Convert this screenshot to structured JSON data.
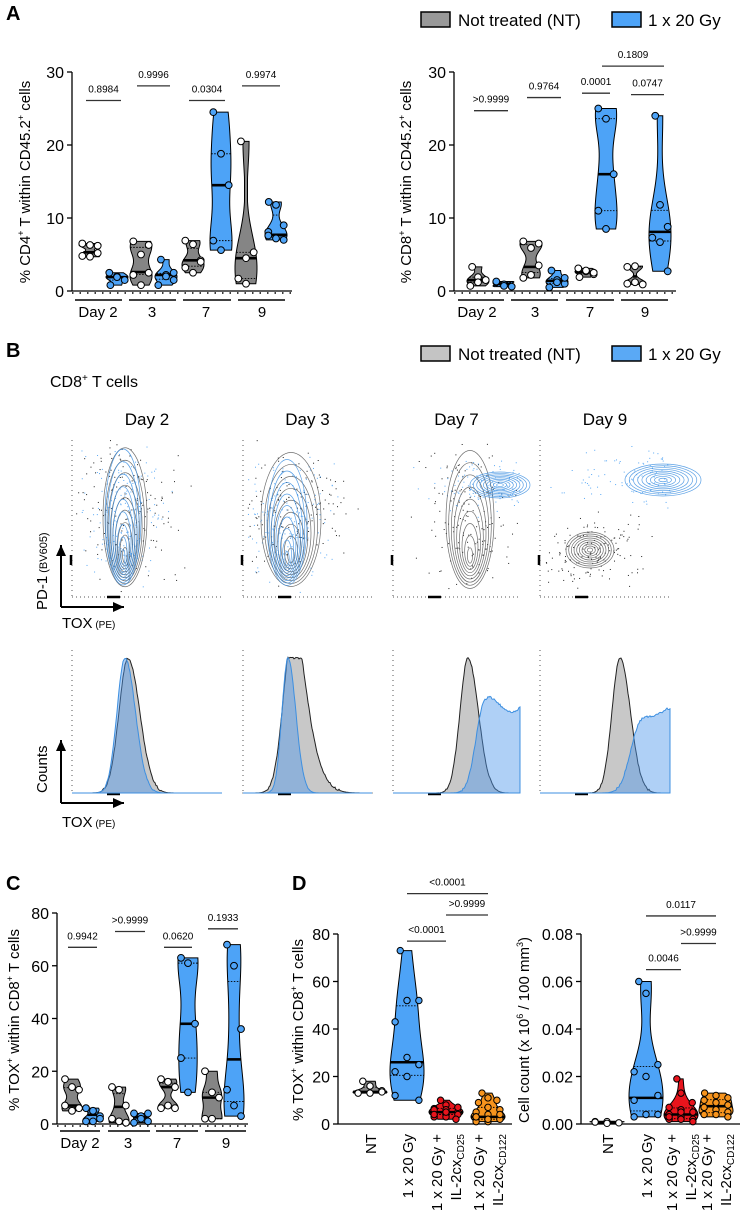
{
  "panel_letters": {
    "A": "A",
    "B": "B",
    "C": "C",
    "D": "D"
  },
  "legend": {
    "nt": "Not treated (NT)",
    "ir": "1 x 20 Gy"
  },
  "colors": {
    "nt": "#808080",
    "ir": "#4da3f7",
    "cd25": "#e8141c",
    "cd122": "#f7941d",
    "nt_flow": "#555555",
    "ir_flow": "#3d8fe0"
  },
  "panel_b": {
    "title_parts": [
      "CD8",
      "+",
      " T cells"
    ],
    "days": [
      "Day 2",
      "Day 3",
      "Day 7",
      "Day 9"
    ],
    "contour_ylabel": {
      "main": "PD-1",
      "sub": " (BV605)"
    },
    "contour_xlabel": {
      "main": "TOX",
      "sub": " (PE)"
    },
    "hist_ylabel": "Counts",
    "hist_xlabel": {
      "main": "TOX",
      "sub": " (PE)"
    }
  },
  "chart_data": [
    {
      "id": "A_cd4",
      "type": "violin",
      "ylabel_parts": [
        "% CD4",
        "+",
        " T within CD45.2",
        "+",
        " cells"
      ],
      "ylim": [
        0,
        30
      ],
      "yticks": [
        "0",
        "10",
        "20",
        "30"
      ],
      "ytick_values": [
        0,
        10,
        20,
        30
      ],
      "x_group_labels": [
        "Day 2",
        "3",
        "7",
        "9"
      ],
      "groups": [
        {
          "day": "Day 2",
          "series": "nt",
          "points": [
            6.5,
            6.3,
            5.2,
            4.8,
            4.7,
            6.2
          ],
          "median": 5.3
        },
        {
          "day": "Day 2",
          "series": "ir",
          "points": [
            2.5,
            2.0,
            1.5,
            0.8,
            1.9
          ],
          "median": 1.9
        },
        {
          "day": "3",
          "series": "nt",
          "points": [
            6.8,
            5.0,
            2.5,
            2.2,
            0.8,
            6.3
          ],
          "median": 2.6
        },
        {
          "day": "3",
          "series": "ir",
          "points": [
            4.3,
            2.2,
            1.5,
            0.8,
            2.0,
            2.5
          ],
          "median": 2.2
        },
        {
          "day": "7",
          "series": "nt",
          "points": [
            6.9,
            6.4,
            4.2,
            3.2,
            2.5,
            4.0
          ],
          "median": 4.2
        },
        {
          "day": "7",
          "series": "ir",
          "points": [
            24.5,
            18.8,
            14.5,
            6.9,
            5.6
          ],
          "median": 14.5
        },
        {
          "day": "9",
          "series": "nt",
          "points": [
            20.5,
            4.5,
            5.3,
            1.7,
            1.0
          ],
          "median": 4.5
        },
        {
          "day": "9",
          "series": "ir",
          "points": [
            12.2,
            11.8,
            9.0,
            8.1,
            7.2,
            7.0,
            7.6
          ],
          "median": 7.7
        }
      ],
      "comparisons": [
        {
          "from": 0,
          "to": 1,
          "p": "0.8984",
          "y": 26.1
        },
        {
          "from": 2,
          "to": 3,
          "p": "0.9996",
          "y": 28.1
        },
        {
          "from": 4,
          "to": 5,
          "p": "0.0304",
          "y": 26.1
        },
        {
          "from": 6,
          "to": 7,
          "p": "0.9974",
          "y": 28.1
        }
      ]
    },
    {
      "id": "A_cd8",
      "type": "violin",
      "ylabel_parts": [
        "% CD8",
        "+",
        " T within CD45.2",
        "+",
        " cells"
      ],
      "ylim": [
        0,
        30
      ],
      "yticks": [
        "0",
        "10",
        "20",
        "30"
      ],
      "ytick_values": [
        0,
        10,
        20,
        30
      ],
      "x_group_labels": [
        "Day 2",
        "3",
        "7",
        "9"
      ],
      "groups": [
        {
          "day": "Day 2",
          "series": "nt",
          "points": [
            3.3,
            1.9,
            1.5,
            0.7,
            1.2
          ],
          "median": 1.5
        },
        {
          "day": "Day 2",
          "series": "ir",
          "points": [
            1.2,
            0.9,
            0.6,
            1.3,
            0.7
          ],
          "median": 1.0
        },
        {
          "day": "3",
          "series": "nt",
          "points": [
            6.8,
            5.9,
            3.5,
            1.8,
            2.2,
            6.5
          ],
          "median": 3.3
        },
        {
          "day": "3",
          "series": "ir",
          "points": [
            2.8,
            1.5,
            1.0,
            0.5,
            1.2,
            1.8
          ],
          "median": 1.4
        },
        {
          "day": "7",
          "series": "nt",
          "points": [
            3.1,
            2.7,
            2.3,
            1.9,
            2.8,
            2.5
          ],
          "median": 2.6
        },
        {
          "day": "7",
          "series": "ir",
          "points": [
            25.0,
            23.6,
            16.0,
            11.0,
            8.5
          ],
          "median": 16.0
        },
        {
          "day": "9",
          "series": "nt",
          "points": [
            3.3,
            3.4,
            0.9,
            1.0,
            1.2
          ],
          "median": 2.0
        },
        {
          "day": "9",
          "series": "ir",
          "points": [
            24.0,
            11.8,
            8.8,
            7.3,
            6.7,
            2.7
          ],
          "median": 8.1
        }
      ],
      "comparisons": [
        {
          "from": 0,
          "to": 1,
          "p": ">0.9999",
          "y": 24.7
        },
        {
          "from": 2,
          "to": 3,
          "p": "0.9764",
          "y": 26.5
        },
        {
          "from": 4,
          "to": 5,
          "p": "0.0001",
          "y": 27.1
        },
        {
          "from": 6,
          "to": 7,
          "p": "0.0747",
          "y": 26.9
        },
        {
          "from": 5,
          "to": 7,
          "p": "0.1809",
          "y": 30.8
        }
      ]
    },
    {
      "id": "C",
      "type": "violin",
      "ylabel_parts": [
        "% TOX",
        "+",
        " within CD8",
        "+",
        " T cells"
      ],
      "ylim": [
        0,
        80
      ],
      "yticks": [
        "0",
        "20",
        "40",
        "60",
        "80"
      ],
      "ytick_values": [
        0,
        20,
        40,
        60,
        80
      ],
      "x_group_labels": [
        "Day 2",
        "3",
        "7",
        "9"
      ],
      "groups": [
        {
          "day": "Day 2",
          "series": "nt",
          "points": [
            17,
            14,
            13,
            7,
            5,
            6
          ],
          "median": 7
        },
        {
          "day": "Day 2",
          "series": "ir",
          "points": [
            6,
            5,
            3,
            1,
            1,
            2
          ],
          "median": 3.5
        },
        {
          "day": "3",
          "series": "nt",
          "points": [
            14,
            13,
            7,
            2,
            1,
            0.5
          ],
          "median": 6.5
        },
        {
          "day": "3",
          "series": "ir",
          "points": [
            4,
            3,
            1,
            0.5,
            2,
            4
          ],
          "median": 2.5
        },
        {
          "day": "7",
          "series": "nt",
          "points": [
            17,
            16,
            14,
            6,
            7,
            6
          ],
          "median": 14
        },
        {
          "day": "7",
          "series": "ir",
          "points": [
            63,
            61,
            38,
            25,
            12
          ],
          "median": 38
        },
        {
          "day": "9",
          "series": "nt",
          "points": [
            20,
            12,
            10,
            2,
            2
          ],
          "median": 10
        },
        {
          "day": "9",
          "series": "ir",
          "points": [
            68,
            60,
            36,
            13,
            7,
            3
          ],
          "median": 24.5
        }
      ],
      "comparisons": [
        {
          "from": 0,
          "to": 1,
          "p": "0.9942",
          "y": 67
        },
        {
          "from": 2,
          "to": 3,
          "p": ">0.9999",
          "y": 73
        },
        {
          "from": 4,
          "to": 5,
          "p": "0.0620",
          "y": 67
        },
        {
          "from": 6,
          "to": 7,
          "p": "0.1933",
          "y": 74
        }
      ]
    },
    {
      "id": "D_pct",
      "type": "violin",
      "ylabel_parts": [
        "% TOX",
        "+",
        " within CD8",
        "+",
        " T cells"
      ],
      "ylim": [
        0,
        80
      ],
      "yticks": [
        "0",
        "20",
        "40",
        "60",
        "80"
      ],
      "ytick_values": [
        0,
        20,
        40,
        60,
        80
      ],
      "categories": [
        {
          "line1": "NT",
          "line2": "",
          "sub": ""
        },
        {
          "line1": "1 x 20 Gy",
          "line2": "",
          "sub": ""
        },
        {
          "line1": "1 x 20 Gy +",
          "line2": "IL-2cx",
          "sub": "CD25"
        },
        {
          "line1": "1 x 20 Gy +",
          "line2": "IL-2cx",
          "sub": "CD122"
        }
      ],
      "groups": [
        {
          "series": "nt",
          "points": [
            18,
            16,
            14,
            13,
            13,
            13.5
          ],
          "median": 13.5
        },
        {
          "series": "ir",
          "points": [
            73,
            52,
            52,
            43,
            28,
            25,
            22,
            20,
            10,
            12
          ],
          "median": 26
        },
        {
          "series": "cd25",
          "points": [
            10,
            8,
            7,
            6.5,
            6,
            5,
            5,
            4,
            4,
            3,
            3,
            2,
            6,
            5,
            7,
            4
          ],
          "median": 5
        },
        {
          "series": "cd122",
          "points": [
            13,
            11,
            10,
            9,
            7,
            6,
            5,
            4,
            3,
            3,
            2,
            2,
            1,
            1,
            4,
            3,
            2
          ],
          "median": 3
        }
      ],
      "comparisons": [
        {
          "from": 1,
          "to": 2,
          "p": "<0.0001",
          "y": 77
        },
        {
          "from": 2,
          "to": 3,
          "p": ">0.9999",
          "y": 88
        },
        {
          "from": 1,
          "to": 3,
          "p": "<0.0001",
          "y": 97
        }
      ]
    },
    {
      "id": "D_cnt",
      "type": "violin",
      "ylabel_parts": [
        "Cell count (x 10",
        "6",
        " / 100 mm",
        "3",
        ")"
      ],
      "ylim": [
        0,
        0.08
      ],
      "yticks": [
        "0.00",
        "0.02",
        "0.04",
        "0.06",
        "0.08"
      ],
      "ytick_values": [
        0,
        0.02,
        0.04,
        0.06,
        0.08
      ],
      "categories": [
        {
          "line1": "NT",
          "line2": "",
          "sub": ""
        },
        {
          "line1": "1 x 20 Gy",
          "line2": "",
          "sub": ""
        },
        {
          "line1": "1 x 20 Gy +",
          "line2": "IL-2cx",
          "sub": "CD25"
        },
        {
          "line1": "1 x 20 Gy +",
          "line2": "IL-2cx",
          "sub": "CD122"
        }
      ],
      "groups": [
        {
          "series": "nt",
          "points": [
            0.001,
            0.001,
            0.0005,
            0.0008,
            0.0003
          ],
          "median": 0.0008
        },
        {
          "series": "ir",
          "points": [
            0.06,
            0.055,
            0.025,
            0.022,
            0.02,
            0.012,
            0.01,
            0.004,
            0.004,
            0.003
          ],
          "median": 0.011
        },
        {
          "series": "cd25",
          "points": [
            0.019,
            0.013,
            0.009,
            0.007,
            0.006,
            0.005,
            0.004,
            0.003,
            0.002,
            0.002,
            0.002,
            0.001,
            0.003,
            0.005
          ],
          "median": 0.004
        },
        {
          "series": "cd122",
          "points": [
            0.013,
            0.012,
            0.011,
            0.01,
            0.009,
            0.008,
            0.007,
            0.006,
            0.005,
            0.004,
            0.004,
            0.003
          ],
          "median": 0.0075
        }
      ],
      "comparisons": [
        {
          "from": 1,
          "to": 2,
          "p": "0.0046",
          "y": 0.065
        },
        {
          "from": 2,
          "to": 3,
          "p": ">0.9999",
          "y": 0.076
        },
        {
          "from": 1,
          "to": 3,
          "p": "0.0117",
          "y": 0.0876
        }
      ]
    }
  ]
}
